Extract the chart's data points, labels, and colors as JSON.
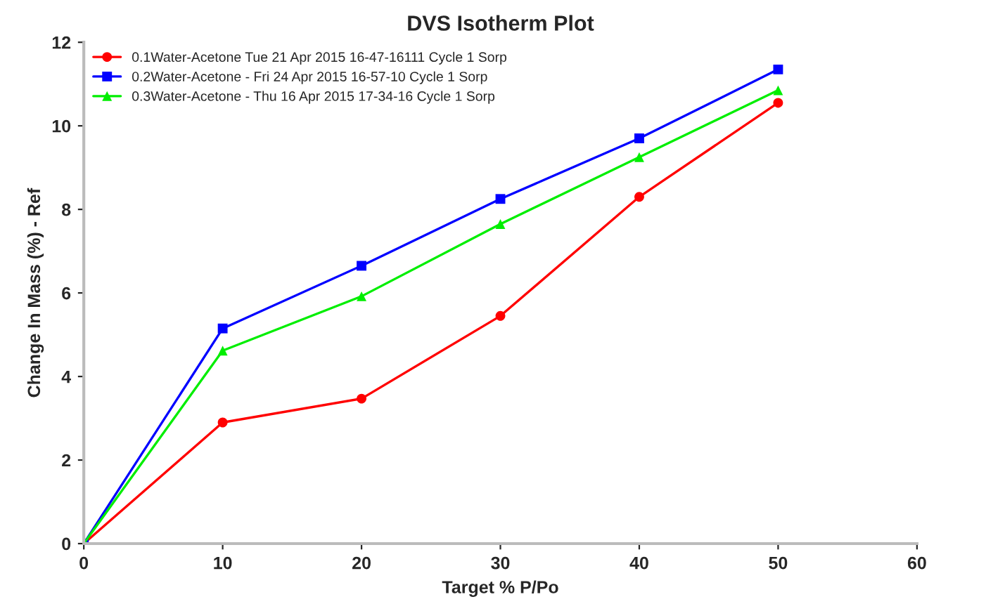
{
  "chart_data": {
    "type": "line",
    "title": "DVS Isotherm Plot",
    "xlabel": "Target % P/Po",
    "ylabel": "Change In Mass (%) - Ref",
    "x": [
      0,
      10,
      20,
      30,
      40,
      50
    ],
    "series": [
      {
        "name": "0.1Water-Acetone Tue 21 Apr 2015 16-47-16111 Cycle 1 Sorp",
        "color": "#ff0000",
        "marker": "circle",
        "values": [
          0,
          2.9,
          3.47,
          5.45,
          8.3,
          10.55
        ]
      },
      {
        "name": "0.2Water-Acetone - Fri 24 Apr 2015 16-57-10 Cycle 1 Sorp",
        "color": "#0000ff",
        "marker": "square",
        "values": [
          0,
          5.15,
          6.65,
          8.25,
          9.7,
          11.35
        ]
      },
      {
        "name": "0.3Water-Acetone - Thu 16 Apr 2015 17-34-16 Cycle 1 Sorp",
        "color": "#00ee00",
        "marker": "triangle",
        "values": [
          0,
          4.62,
          5.92,
          7.65,
          9.25,
          10.85
        ]
      }
    ],
    "xlim": [
      0,
      60
    ],
    "xticks": [
      0,
      10,
      20,
      30,
      40,
      50,
      60
    ],
    "ylim": [
      0,
      12
    ],
    "yticks": [
      0,
      2,
      4,
      6,
      8,
      10,
      12
    ],
    "grid": false,
    "legend": "top left"
  }
}
